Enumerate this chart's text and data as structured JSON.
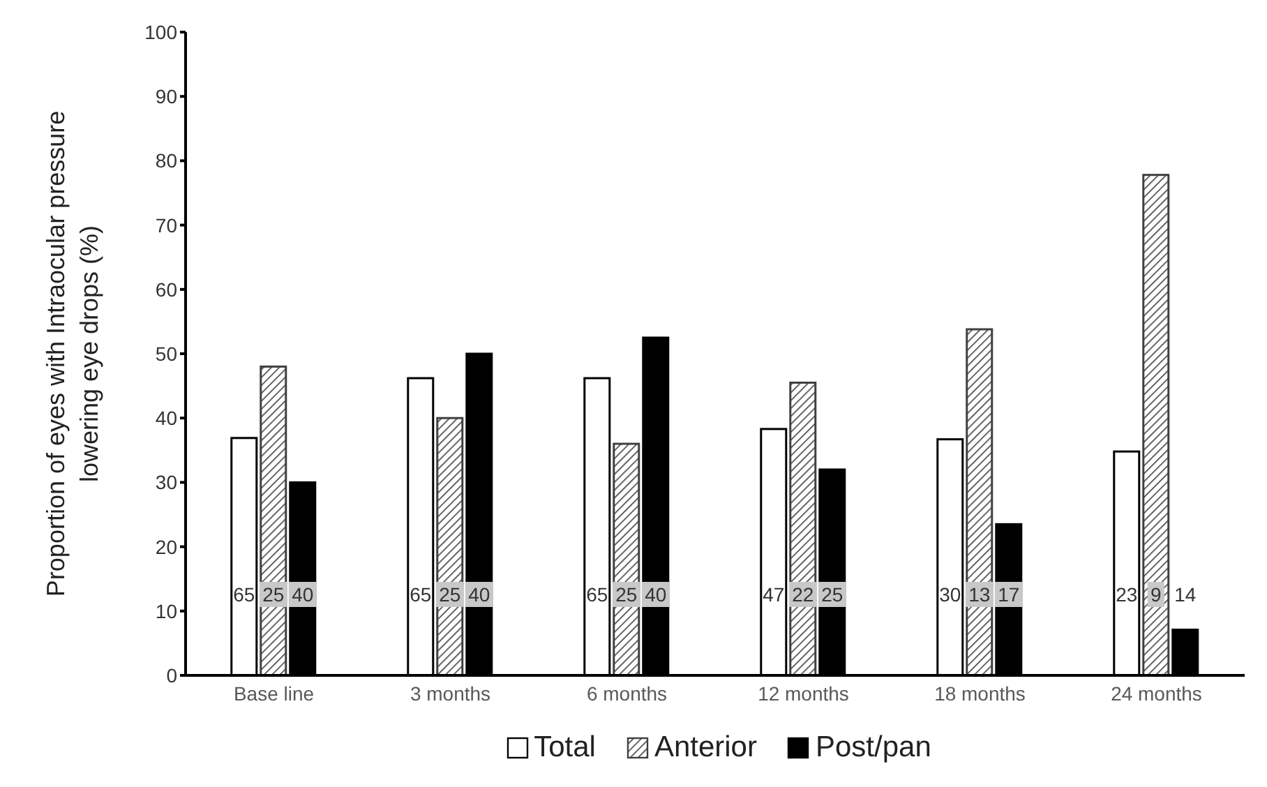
{
  "chart_data": {
    "type": "bar",
    "ylabel": "Proportion of eyes with Intraocular pressure lowering eye drops (%)",
    "categories": [
      "Base line",
      "3 months",
      "6 months",
      "12 months",
      "18 months",
      "24 months"
    ],
    "series": [
      {
        "name": "Total",
        "color": "#ffffff",
        "values": [
          36.9,
          46.2,
          46.2,
          38.3,
          36.7,
          34.8
        ]
      },
      {
        "name": "Anterior",
        "color": "#404040",
        "values": [
          48,
          40,
          36,
          45.5,
          53.8,
          77.8
        ]
      },
      {
        "name": "Post/pan",
        "color": "#000000",
        "values": [
          30,
          50,
          52.5,
          32,
          23.5,
          7.1
        ]
      }
    ],
    "annotations": [
      "65",
      "25",
      "40",
      "65",
      "25",
      "40",
      "65",
      "25",
      "40",
      "47",
      "22",
      "25",
      "30",
      "13",
      "17",
      "23",
      "9",
      "14"
    ],
    "ylim": [
      0,
      100
    ],
    "yticks": [
      0,
      10,
      20,
      30,
      40,
      50,
      60,
      70,
      80,
      90,
      100
    ],
    "grid": false,
    "legend": "bottom"
  }
}
